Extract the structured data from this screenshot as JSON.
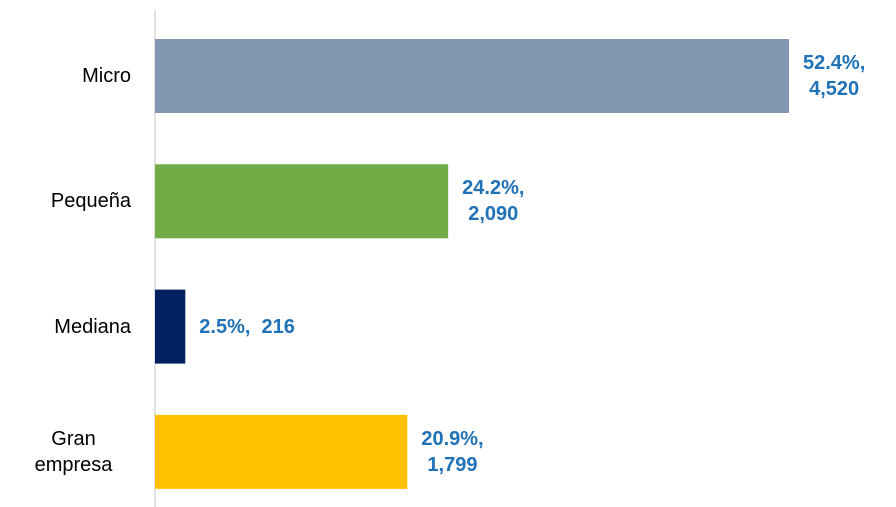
{
  "chart_data": {
    "type": "barh",
    "categories": [
      "Micro",
      "Pequeña",
      "Mediana",
      "Gran empresa"
    ],
    "values": [
      4520,
      2090,
      216,
      1799
    ],
    "value_labels": [
      [
        "52.4%,",
        "4,520"
      ],
      [
        "24.2%,",
        "2,090"
      ],
      [
        "2.5%,  216"
      ],
      [
        "20.9%,",
        "1,799"
      ]
    ],
    "colors": [
      "#8497b0",
      "#70ad47",
      "#002060",
      "#ffc000"
    ]
  }
}
